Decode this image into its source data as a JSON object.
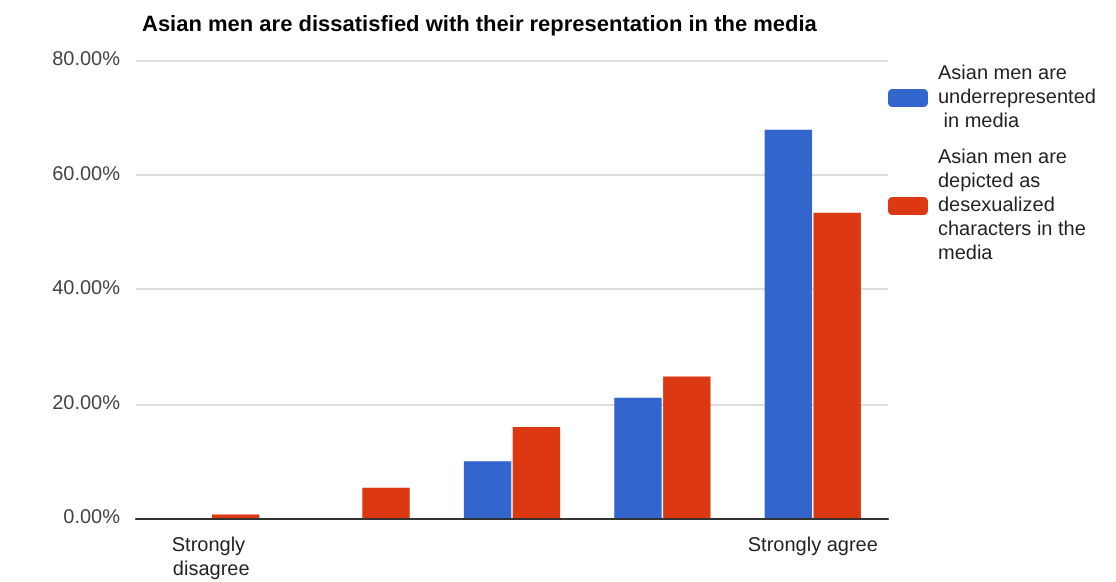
{
  "chart_data": {
    "type": "bar",
    "title": "Asian men are dissatisfied with their representation in the media",
    "categories": [
      "Strongly disagree",
      null,
      null,
      null,
      "Strongly agree"
    ],
    "series": [
      {
        "name": "Asian men are underrepresented in media",
        "color": "#3366cc",
        "values": [
          0,
          0,
          9.9,
          21,
          67.8
        ]
      },
      {
        "name": "Asian men are depicted as desexualized characters in the media",
        "color": "#dc3912",
        "values": [
          0.6,
          5.3,
          15.9,
          24.7,
          53.3
        ]
      }
    ],
    "ylim": [
      0,
      80
    ],
    "yticks": [
      {
        "value": 0,
        "label": "0.00%"
      },
      {
        "value": 20,
        "label": "20.00%"
      },
      {
        "value": 40,
        "label": "40.00%"
      },
      {
        "value": 60,
        "label": "60.00%"
      },
      {
        "value": 80,
        "label": "80.00%"
      }
    ],
    "grid": "y",
    "legend": "right"
  }
}
